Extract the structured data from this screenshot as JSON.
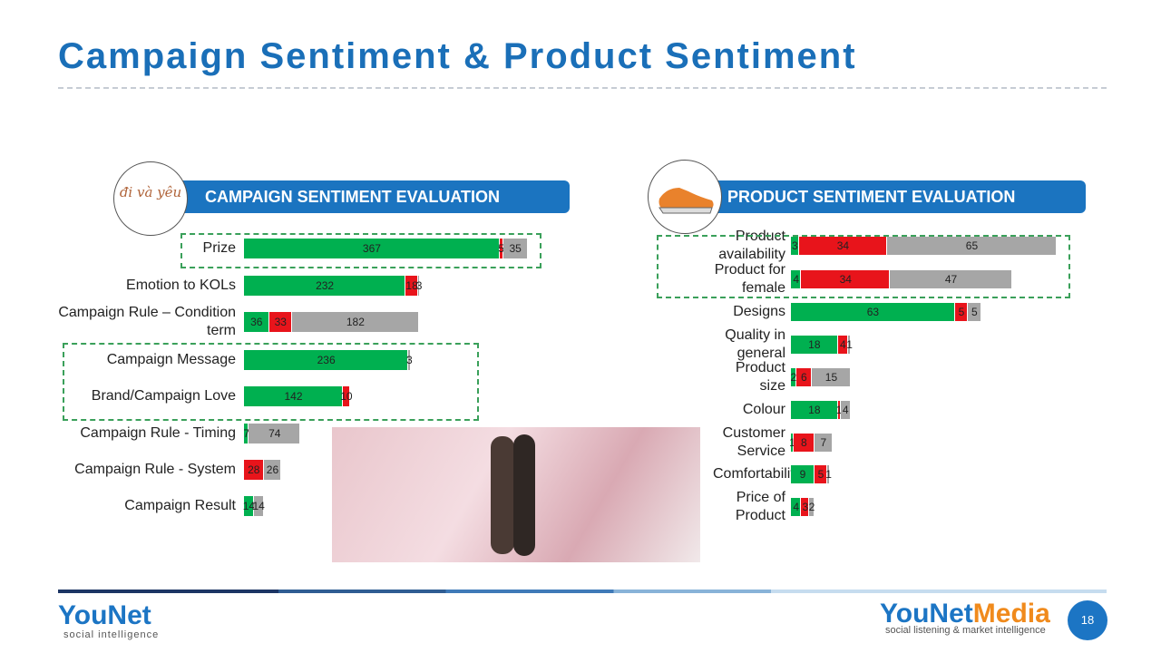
{
  "title": "Campaign Sentiment & Product Sentiment",
  "chart_data": [
    {
      "type": "bar",
      "orientation": "horizontal",
      "stacked": true,
      "heading": "CAMPAIGN SENTIMENT EVALUATION",
      "badge": "đi và yêu",
      "categories": [
        "Prize",
        "Emotion to KOLs",
        "Campaign Rule – Condition term",
        "Campaign Message",
        "Brand/Campaign Love",
        "Campaign Rule - Timing",
        "Campaign Rule - System",
        "Campaign Result"
      ],
      "series": [
        {
          "color": "#00b050",
          "values": [
            367,
            232,
            36,
            236,
            142,
            7,
            null,
            14
          ]
        },
        {
          "color": "#e8141b",
          "values": [
            5,
            18,
            33,
            null,
            10,
            null,
            28,
            null
          ]
        },
        {
          "color": "#a6a6a6",
          "values": [
            35,
            3,
            182,
            3,
            null,
            74,
            26,
            14
          ]
        }
      ]
    },
    {
      "type": "bar",
      "orientation": "horizontal",
      "stacked": true,
      "heading": "PRODUCT SENTIMENT EVALUATION",
      "categories": [
        "Product availability",
        "Product for female",
        "Designs",
        "Quality in general",
        "Product size",
        "Colour",
        "Customer Service",
        "Comfortability",
        "Price of Product"
      ],
      "series": [
        {
          "color": "#00b050",
          "values": [
            3,
            4,
            63,
            18,
            2,
            18,
            1,
            9,
            4
          ]
        },
        {
          "color": "#e8141b",
          "values": [
            34,
            34,
            5,
            4,
            6,
            1,
            8,
            5,
            3
          ]
        },
        {
          "color": "#a6a6a6",
          "values": [
            65,
            47,
            5,
            1,
            15,
            4,
            7,
            1,
            2
          ]
        }
      ]
    }
  ],
  "footer": {
    "left_logo": "YouNet",
    "left_tagline": "social intelligence",
    "right_logo_a": "YouNet",
    "right_logo_b": "Media",
    "right_tagline": "social listening & market intelligence",
    "page": "18"
  }
}
